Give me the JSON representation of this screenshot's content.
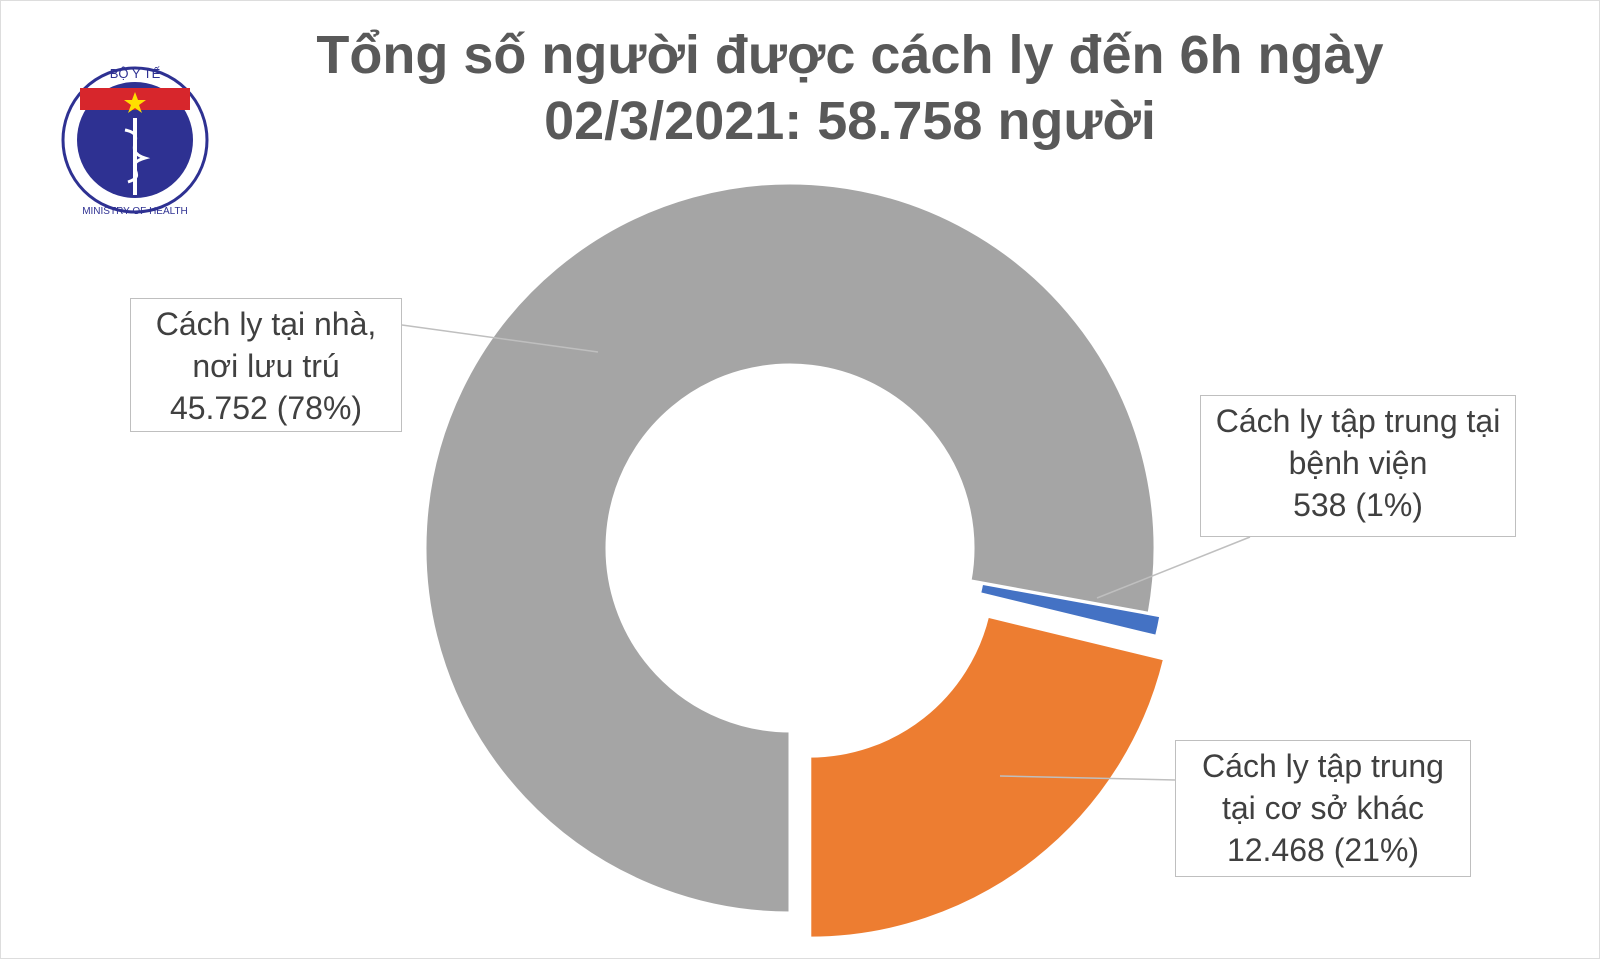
{
  "logo": {
    "top_text": "BỘ Y TẾ",
    "bottom_text": "MINISTRY OF HEALTH"
  },
  "chart_data": {
    "type": "pie",
    "title": "Tổng số người được cách ly đến 6h ngày 02/3/2021: 58.758 người",
    "categories": [
      "Cách ly tại nhà, nơi lưu trú",
      "Cách ly tập trung tại bệnh viện",
      "Cách ly tập trung tại cơ sở khác"
    ],
    "values": [
      45752,
      538,
      12468
    ],
    "value_labels": [
      "45.752 (78%)",
      "538 (1%)",
      "12.468 (21%)"
    ],
    "colors": [
      "#a5a5a5",
      "#4472c4",
      "#ed7d31"
    ]
  }
}
